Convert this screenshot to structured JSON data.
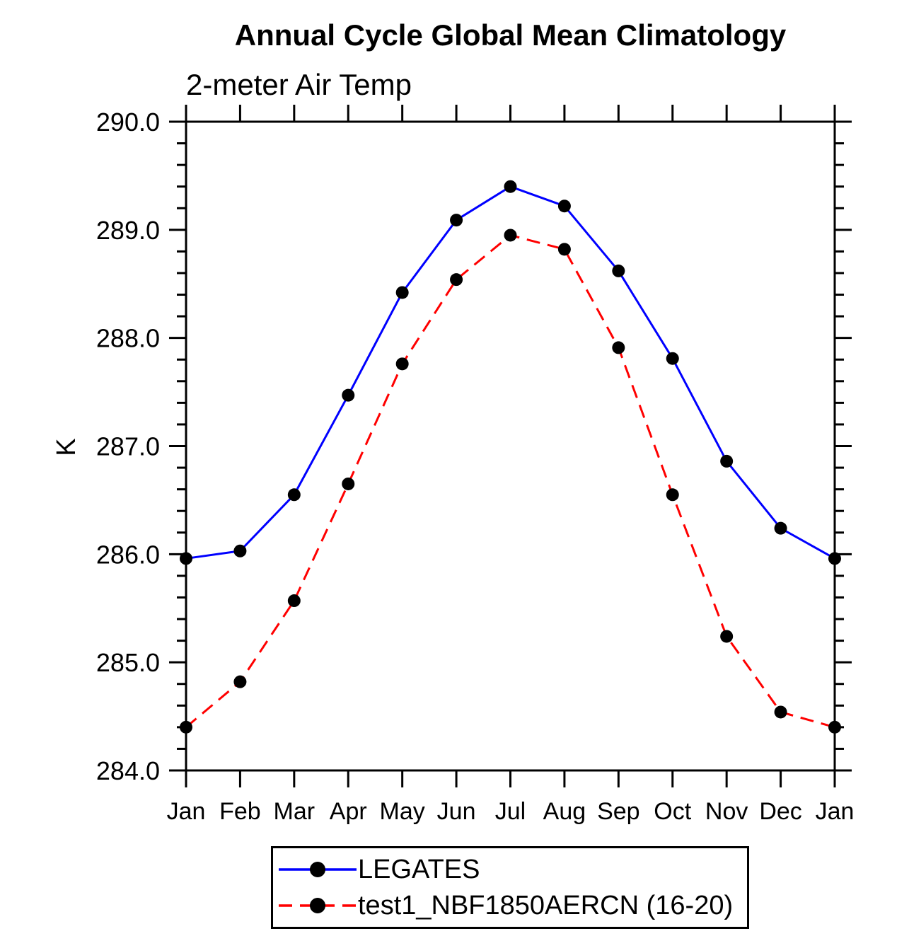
{
  "chart_data": {
    "type": "line",
    "title": "Annual Cycle Global Mean Climatology",
    "subtitle": "2-meter Air Temp",
    "ylabel": "K",
    "xlabel": "",
    "categories": [
      "Jan",
      "Feb",
      "Mar",
      "Apr",
      "May",
      "Jun",
      "Jul",
      "Aug",
      "Sep",
      "Oct",
      "Nov",
      "Dec",
      "Jan"
    ],
    "ylim": [
      284.0,
      290.0
    ],
    "ytick_major": 1.0,
    "ytick_minor": 0.2,
    "ytick_labels": [
      "284.0",
      "285.0",
      "286.0",
      "287.0",
      "288.0",
      "289.0",
      "290.0"
    ],
    "grid": false,
    "legend_position": "bottom",
    "series": [
      {
        "name": "LEGATES",
        "color": "#0000ff",
        "style": "solid",
        "marker": "circle",
        "marker_color": "#000000",
        "values": [
          285.96,
          286.03,
          286.55,
          287.47,
          288.42,
          289.09,
          289.4,
          289.22,
          288.62,
          287.81,
          286.86,
          286.24,
          285.96
        ]
      },
      {
        "name": "test1_NBF1850AERCN (16-20)",
        "color": "#ff0000",
        "style": "dashed",
        "marker": "circle",
        "marker_color": "#000000",
        "values": [
          284.4,
          284.82,
          285.57,
          286.65,
          287.76,
          288.54,
          288.95,
          288.82,
          287.91,
          286.55,
          285.24,
          284.54,
          284.4
        ]
      }
    ]
  }
}
